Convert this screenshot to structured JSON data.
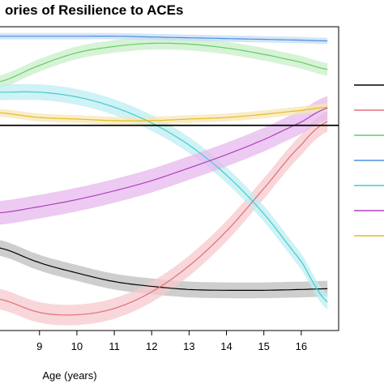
{
  "chart_data": {
    "type": "line",
    "title": "ories of Resilience to ACEs",
    "xlabel": "Age (years)",
    "ylabel": "",
    "xlim": [
      7.9,
      17.0
    ],
    "ylim": [
      -2.6,
      1.25
    ],
    "x_ticks": [
      9,
      10,
      11,
      12,
      13,
      14,
      15,
      16
    ],
    "x_tick_labels": [
      "9",
      "10",
      "11",
      "12",
      "13",
      "14",
      "15",
      "16"
    ],
    "reference_line_y": 0,
    "grid": false,
    "legend": "right",
    "series": [
      {
        "color": "#000000",
        "band": "#bdbdbd",
        "x": [
          7.9,
          9,
          10,
          11,
          12,
          13,
          14,
          15,
          16,
          16.7
        ],
        "y": [
          -1.55,
          -1.74,
          -1.87,
          -1.98,
          -2.04,
          -2.08,
          -2.09,
          -2.09,
          -2.08,
          -2.07
        ],
        "halfwidth": 0.1
      },
      {
        "color": "#e0707a",
        "band": "#f6c8cc",
        "x": [
          7.9,
          9,
          10,
          11,
          12,
          13,
          14,
          15,
          16,
          16.7
        ],
        "y": [
          -2.2,
          -2.37,
          -2.4,
          -2.32,
          -2.11,
          -1.78,
          -1.34,
          -0.8,
          -0.25,
          0.05
        ],
        "halfwidth": 0.13
      },
      {
        "color": "#66cc66",
        "band": "#c8efc8",
        "x": [
          7.9,
          9,
          10,
          11,
          12,
          13,
          14,
          15,
          16,
          16.7
        ],
        "y": [
          0.55,
          0.76,
          0.92,
          1.0,
          1.04,
          1.03,
          0.98,
          0.9,
          0.8,
          0.71
        ],
        "halfwidth": 0.08
      },
      {
        "color": "#4a90e0",
        "band": "#c4dcf6",
        "x": [
          7.9,
          9,
          10,
          11,
          12,
          13,
          14,
          15,
          16,
          16.7
        ],
        "y": [
          1.13,
          1.13,
          1.13,
          1.13,
          1.12,
          1.11,
          1.1,
          1.09,
          1.08,
          1.07
        ],
        "halfwidth": 0.04
      },
      {
        "color": "#44cccc",
        "band": "#bdeef2",
        "x": [
          7.9,
          9,
          10,
          11,
          12,
          13,
          14,
          15,
          16,
          16.7
        ],
        "y": [
          0.42,
          0.42,
          0.36,
          0.23,
          0.03,
          -0.25,
          -0.63,
          -1.12,
          -1.72,
          -2.24
        ],
        "halfwidth": 0.1
      },
      {
        "color": "#b040c0",
        "band": "#e7b8ec",
        "x": [
          7.9,
          9,
          10,
          11,
          12,
          13,
          14,
          15,
          16,
          16.7
        ],
        "y": [
          -1.11,
          -1.03,
          -0.94,
          -0.83,
          -0.7,
          -0.54,
          -0.37,
          -0.18,
          0.04,
          0.22
        ],
        "halfwidth": 0.15
      },
      {
        "color": "#e6bb2a",
        "band": "#f6e7b4",
        "x": [
          7.9,
          9,
          10,
          11,
          12,
          13,
          14,
          15,
          16,
          16.7
        ],
        "y": [
          0.16,
          0.1,
          0.08,
          0.06,
          0.06,
          0.08,
          0.1,
          0.14,
          0.19,
          0.23
        ],
        "halfwidth": 0.05
      }
    ]
  }
}
